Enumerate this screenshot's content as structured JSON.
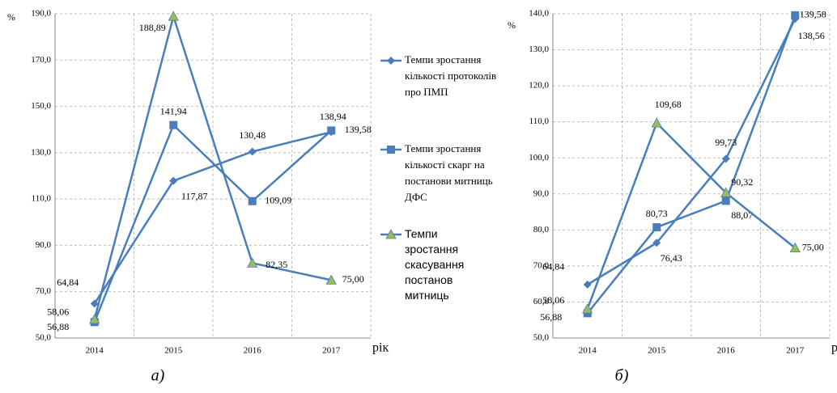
{
  "chart_data": [
    {
      "type": "line",
      "caption": "а)",
      "ylabel": "%",
      "xlabel": "рік",
      "categories": [
        "2014",
        "2015",
        "2016",
        "2017"
      ],
      "ylim": [
        50,
        190
      ],
      "yticks": [
        {
          "value": 50,
          "label": "50,0"
        },
        {
          "value": 70,
          "label": "70,0"
        },
        {
          "value": 90,
          "label": "90,0"
        },
        {
          "value": 110,
          "label": "110,0"
        },
        {
          "value": 130,
          "label": "130,0"
        },
        {
          "value": 150,
          "label": "150,0"
        },
        {
          "value": 170,
          "label": "170,0"
        },
        {
          "value": 190,
          "label": "190,0"
        }
      ],
      "grid": true,
      "legend": "right",
      "series": [
        {
          "name": "Темпи зростання кількості протоколів про ПМП",
          "color": "#4a7ebb",
          "marker": "diamond",
          "values": [
            64.84,
            117.87,
            130.48,
            138.94
          ],
          "value_labels": [
            "64,84",
            "117,87",
            "130,48",
            "138,94"
          ]
        },
        {
          "name": "Темпи зростання кількості скарг на постанови митниць ДФС",
          "color": "#4a7ebb",
          "marker": "square",
          "values": [
            56.88,
            141.94,
            109.09,
            139.58
          ],
          "value_labels": [
            "56,88",
            "141,94",
            "109,09",
            "139,58"
          ]
        },
        {
          "name": "Темпи зростання скасування постанов митниць",
          "color": "#4a7ebb",
          "marker": "triangle",
          "marker_color": "#9bbb59",
          "values": [
            58.06,
            188.89,
            82.35,
            75.0
          ],
          "value_labels": [
            "58,06",
            "188,89",
            "82,35",
            "75,00"
          ]
        }
      ]
    },
    {
      "type": "line",
      "caption": "б)",
      "ylabel": "%",
      "xlabel": "рік",
      "categories": [
        "2014",
        "2015",
        "2016",
        "2017"
      ],
      "ylim": [
        50,
        140
      ],
      "yticks": [
        {
          "value": 50,
          "label": "50,0"
        },
        {
          "value": 60,
          "label": "60,0"
        },
        {
          "value": 70,
          "label": "70,0"
        },
        {
          "value": 80,
          "label": "80,0"
        },
        {
          "value": 90,
          "label": "90,0"
        },
        {
          "value": 100,
          "label": "100,0"
        },
        {
          "value": 110,
          "label": "110,0"
        },
        {
          "value": 120,
          "label": "120,0"
        },
        {
          "value": 130,
          "label": "130,0"
        },
        {
          "value": 140,
          "label": "140,0"
        }
      ],
      "grid": true,
      "series": [
        {
          "color": "#4a7ebb",
          "marker": "diamond",
          "values": [
            64.84,
            76.43,
            99.73,
            138.56
          ],
          "value_labels": [
            "64,84",
            "76,43",
            "99,73",
            "138,56"
          ]
        },
        {
          "color": "#4a7ebb",
          "marker": "square",
          "values": [
            56.88,
            80.73,
            88.07,
            139.58
          ],
          "value_labels": [
            "56,88",
            "80,73",
            "88,07",
            "139,58"
          ]
        },
        {
          "color": "#4a7ebb",
          "marker": "triangle",
          "marker_color": "#9bbb59",
          "values": [
            58.06,
            109.68,
            90.32,
            75.0
          ],
          "value_labels": [
            "58,06",
            "109,68",
            "90,32",
            "75,00"
          ]
        }
      ]
    }
  ]
}
